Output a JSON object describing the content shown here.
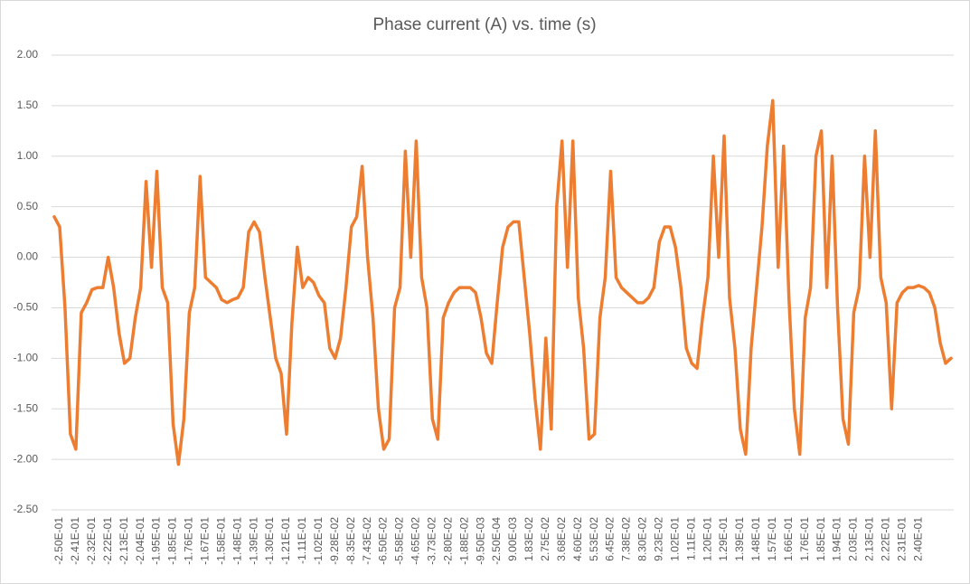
{
  "chart_data": {
    "type": "line",
    "title": "Phase current (A) vs. time (s)",
    "categories": [
      null,
      "-2.50E-01",
      null,
      null,
      "-2.41E-01",
      null,
      null,
      "-2.32E-01",
      null,
      null,
      "-2.22E-01",
      null,
      null,
      "-2.13E-01",
      null,
      null,
      "-2.04E-01",
      null,
      null,
      "-1.95E-01",
      null,
      null,
      "-1.85E-01",
      null,
      null,
      "-1.76E-01",
      null,
      null,
      "-1.67E-01",
      null,
      null,
      "-1.58E-01",
      null,
      null,
      "-1.48E-01",
      null,
      null,
      "-1.39E-01",
      null,
      null,
      "-1.30E-01",
      null,
      null,
      "-1.21E-01",
      null,
      null,
      "-1.11E-01",
      null,
      null,
      "-1.02E-01",
      null,
      null,
      "-9.28E-02",
      null,
      null,
      "-8.35E-02",
      null,
      null,
      "-7.43E-02",
      null,
      null,
      "-6.50E-02",
      null,
      null,
      "-5.58E-02",
      null,
      null,
      "-4.65E-02",
      null,
      null,
      "-3.73E-02",
      null,
      null,
      "-2.80E-02",
      null,
      null,
      "-1.88E-02",
      null,
      null,
      "-9.50E-03",
      null,
      null,
      "-2.50E-04",
      null,
      null,
      "9.00E-03",
      null,
      null,
      "1.83E-02",
      null,
      null,
      "2.75E-02",
      null,
      null,
      "3.68E-02",
      null,
      null,
      "4.60E-02",
      null,
      null,
      "5.53E-02",
      null,
      null,
      "6.45E-02",
      null,
      null,
      "7.38E-02",
      null,
      null,
      "8.30E-02",
      null,
      null,
      "9.23E-02",
      null,
      null,
      "1.02E-01",
      null,
      null,
      "1.11E-01",
      null,
      null,
      "1.20E-01",
      null,
      null,
      "1.29E-01",
      null,
      null,
      "1.39E-01",
      null,
      null,
      "1.48E-01",
      null,
      null,
      "1.57E-01",
      null,
      null,
      "1.66E-01",
      null,
      null,
      "1.76E-01",
      null,
      null,
      "1.85E-01",
      null,
      null,
      "1.94E-01",
      null,
      null,
      "2.03E-01",
      null,
      null,
      "2.13E-01",
      null,
      null,
      "2.22E-01",
      null,
      null,
      "2.31E-01",
      null,
      null,
      "2.40E-01",
      null,
      null,
      null,
      null,
      null,
      null
    ],
    "values": [
      0.4,
      0.3,
      -0.5,
      -1.75,
      -1.9,
      -0.55,
      -0.45,
      -0.32,
      -0.3,
      -0.3,
      0.0,
      -0.3,
      -0.75,
      -1.05,
      -1.0,
      -0.6,
      -0.3,
      0.75,
      -0.1,
      0.85,
      -0.3,
      -0.45,
      -1.65,
      -2.05,
      -1.6,
      -0.55,
      -0.3,
      0.8,
      -0.2,
      -0.25,
      -0.3,
      -0.42,
      -0.45,
      -0.42,
      -0.4,
      -0.3,
      0.25,
      0.35,
      0.25,
      -0.2,
      -0.6,
      -1.0,
      -1.15,
      -1.75,
      -0.65,
      0.1,
      -0.3,
      -0.2,
      -0.25,
      -0.38,
      -0.45,
      -0.9,
      -1.0,
      -0.8,
      -0.3,
      0.3,
      0.4,
      0.9,
      0.0,
      -0.6,
      -1.5,
      -1.9,
      -1.8,
      -0.5,
      -0.3,
      1.05,
      0.0,
      1.15,
      -0.2,
      -0.5,
      -1.6,
      -1.8,
      -0.6,
      -0.45,
      -0.35,
      -0.3,
      -0.3,
      -0.3,
      -0.35,
      -0.6,
      -0.95,
      -1.05,
      -0.45,
      0.1,
      0.3,
      0.35,
      0.35,
      -0.2,
      -0.75,
      -1.4,
      -1.9,
      -0.8,
      -1.7,
      0.5,
      1.15,
      -0.1,
      1.15,
      -0.4,
      -0.9,
      -1.8,
      -1.75,
      -0.6,
      -0.2,
      0.85,
      -0.2,
      -0.3,
      -0.35,
      -0.4,
      -0.45,
      -0.45,
      -0.4,
      -0.3,
      0.15,
      0.3,
      0.3,
      0.1,
      -0.3,
      -0.9,
      -1.05,
      -1.1,
      -0.6,
      -0.2,
      1.0,
      0.0,
      1.2,
      -0.4,
      -0.9,
      -1.7,
      -1.95,
      -0.9,
      -0.3,
      0.3,
      1.1,
      1.55,
      -0.1,
      1.1,
      -0.4,
      -1.5,
      -1.95,
      -0.6,
      -0.3,
      1.0,
      1.25,
      -0.3,
      1.0,
      -0.5,
      -1.6,
      -1.85,
      -0.55,
      -0.3,
      1.0,
      0.0,
      1.25,
      -0.2,
      -0.45,
      -1.5,
      -0.45,
      -0.35,
      -0.3,
      -0.3,
      -0.28,
      -0.3,
      -0.35,
      -0.5,
      -0.85,
      -1.05,
      -1.0
    ],
    "color": "#ed7d31",
    "ylim": [
      -2.5,
      2.0
    ],
    "yticks": [
      {
        "value": -2.5,
        "label": "-2.50"
      },
      {
        "value": -2,
        "label": "-2.00"
      },
      {
        "value": -1.5,
        "label": "-1.50"
      },
      {
        "value": -1,
        "label": "-1.00"
      },
      {
        "value": -0.5,
        "label": "-0.50"
      },
      {
        "value": 0,
        "label": "0.00"
      },
      {
        "value": 0.5,
        "label": "0.50"
      },
      {
        "value": 1,
        "label": "1.00"
      },
      {
        "value": 1.5,
        "label": "1.50"
      },
      {
        "value": 2,
        "label": "2.00"
      }
    ],
    "grid": true
  }
}
